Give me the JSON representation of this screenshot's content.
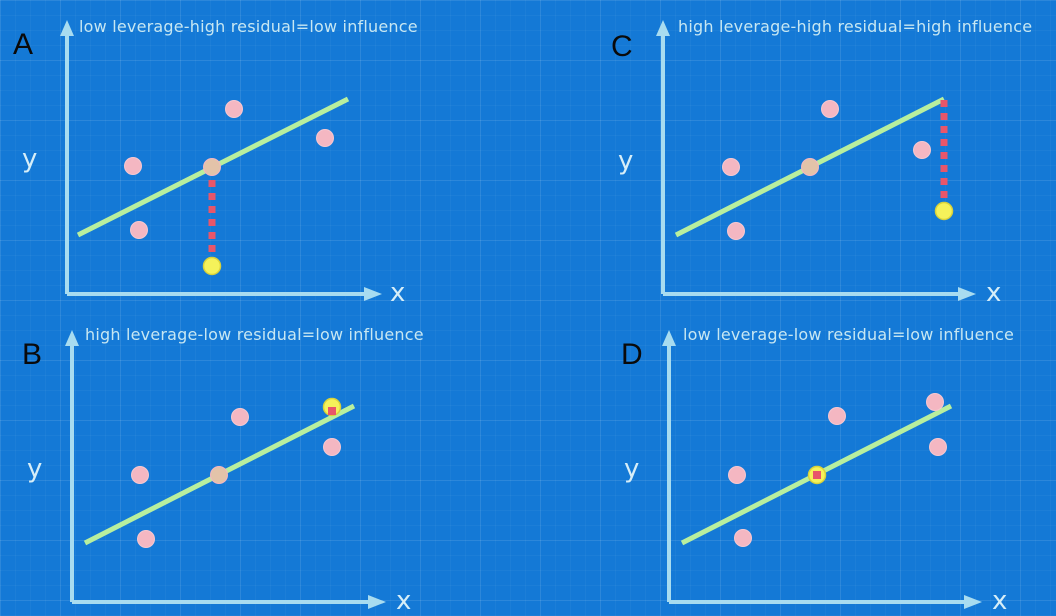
{
  "colors": {
    "background": "#1479d6",
    "axis": "#a8dcf0",
    "fit_line": "#b8ef9e",
    "point": "#f4b7c2",
    "highlight_point": "#f5f25a",
    "residual": "#e8566a"
  },
  "panels": [
    {
      "letter": "A",
      "caption": "low leverage-high residual=low influence",
      "x_label": "x",
      "y_label": "y",
      "highlight_residual": "high",
      "highlight_leverage": "low"
    },
    {
      "letter": "C",
      "caption": "high leverage-high residual=high influence",
      "x_label": "x",
      "y_label": "y",
      "highlight_residual": "high",
      "highlight_leverage": "high"
    },
    {
      "letter": "B",
      "caption": "high leverage-low residual=low influence",
      "x_label": "x",
      "y_label": "y",
      "highlight_residual": "low",
      "highlight_leverage": "high"
    },
    {
      "letter": "D",
      "caption": "low leverage-low residual=low influence",
      "x_label": "x",
      "y_label": "y",
      "highlight_residual": "low",
      "highlight_leverage": "low"
    }
  ]
}
